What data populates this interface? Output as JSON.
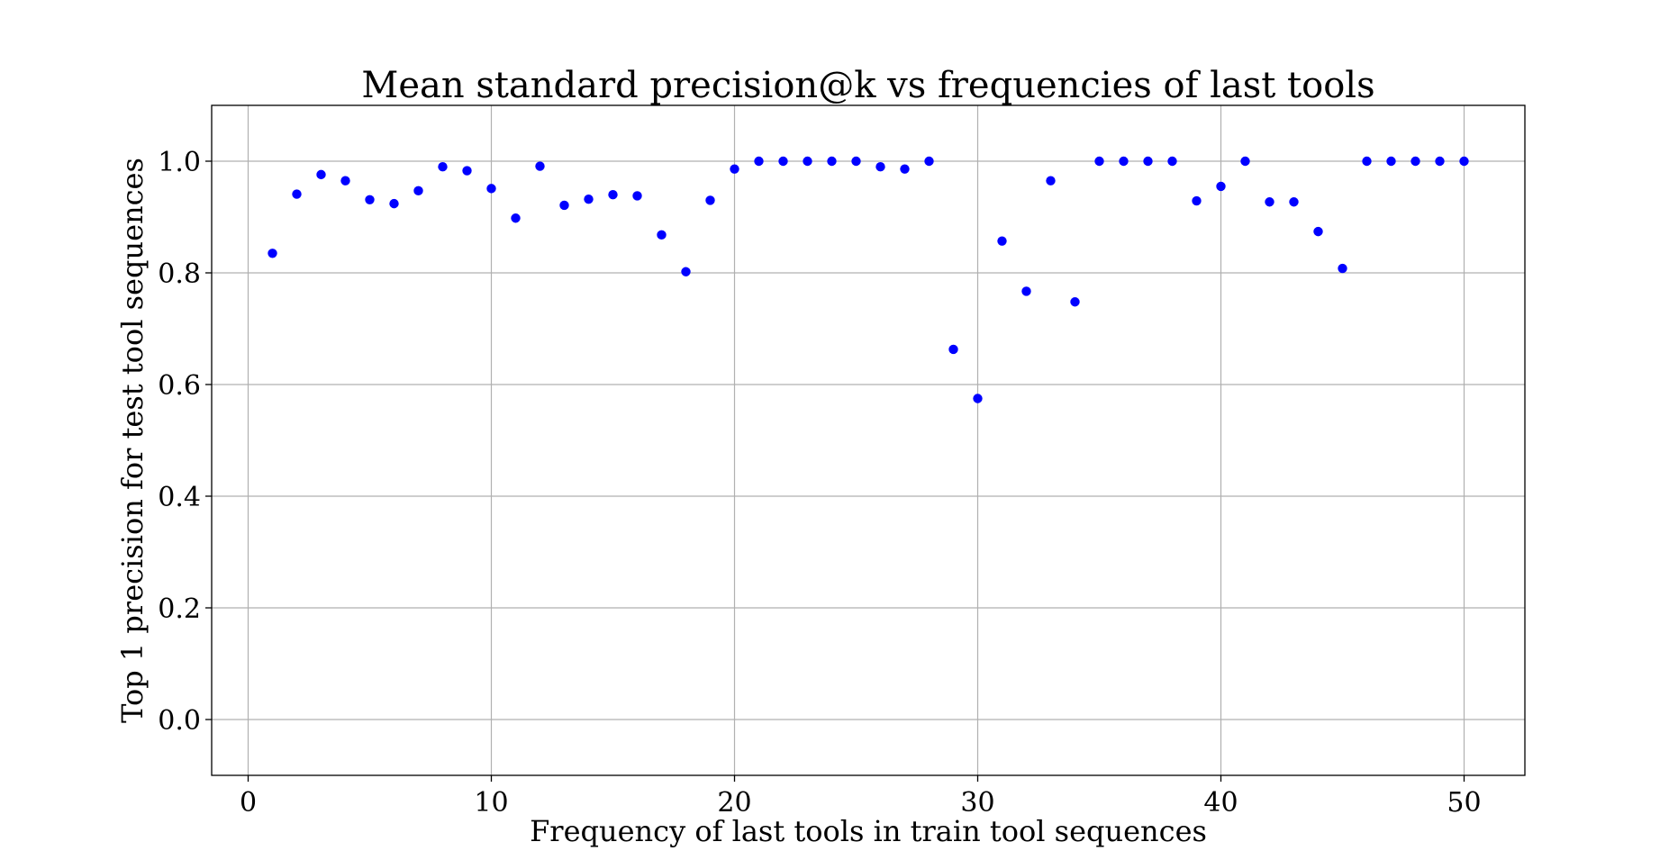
{
  "chart_data": {
    "type": "scatter",
    "title": "Mean standard precision@k vs frequencies of last tools",
    "xlabel": "Frequency of last tools in train tool sequences",
    "ylabel": "Top 1 precision for test tool sequences",
    "xlim": [
      -1.5,
      52.5
    ],
    "ylim": [
      -0.1,
      1.1
    ],
    "xticks": [
      0,
      10,
      20,
      30,
      40,
      50
    ],
    "xtick_labels": [
      "0",
      "10",
      "20",
      "30",
      "40",
      "50"
    ],
    "yticks": [
      0.0,
      0.2,
      0.4,
      0.6,
      0.8,
      1.0
    ],
    "ytick_labels": [
      "0.0",
      "0.2",
      "0.4",
      "0.6",
      "0.8",
      "1.0"
    ],
    "grid": true,
    "marker_color": "#0000ff",
    "x": [
      1,
      2,
      3,
      4,
      5,
      6,
      7,
      8,
      9,
      10,
      11,
      12,
      13,
      14,
      15,
      16,
      17,
      18,
      19,
      20,
      21,
      22,
      23,
      24,
      25,
      26,
      27,
      28,
      29,
      30,
      31,
      32,
      33,
      34,
      35,
      36,
      37,
      38,
      39,
      40,
      41,
      42,
      43,
      44,
      45,
      46,
      47,
      48,
      49,
      50
    ],
    "y": [
      0.835,
      0.941,
      0.976,
      0.965,
      0.931,
      0.924,
      0.947,
      0.99,
      0.983,
      0.951,
      0.898,
      0.991,
      0.921,
      0.932,
      0.94,
      0.938,
      0.868,
      0.802,
      0.93,
      0.986,
      1.0,
      1.0,
      1.0,
      1.0,
      1.0,
      0.99,
      0.986,
      1.0,
      0.663,
      0.575,
      0.857,
      0.767,
      0.965,
      0.748,
      1.0,
      1.0,
      1.0,
      1.0,
      0.929,
      0.955,
      1.0,
      0.927,
      0.927,
      0.874,
      0.808,
      1.0,
      1.0,
      1.0,
      1.0,
      1.0
    ]
  }
}
